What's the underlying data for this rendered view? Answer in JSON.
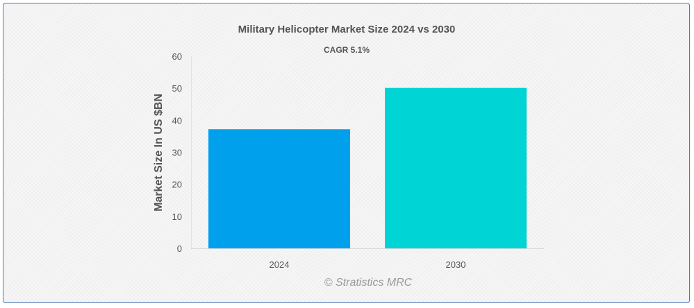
{
  "chart_data": {
    "type": "bar",
    "title": "Military Helicopter Market Size 2024 vs 2030",
    "subtitle": "CAGR 5.1%",
    "xlabel": "",
    "ylabel": "Market Size In US $BN",
    "categories": [
      "2024",
      "2030"
    ],
    "values": [
      37.2,
      50.1
    ],
    "colors": [
      "#00a0ec",
      "#00d4d4"
    ],
    "ylim": [
      0,
      60
    ],
    "yticks": [
      0,
      10,
      20,
      30,
      40,
      50,
      60
    ],
    "grid": false,
    "legend": "none"
  },
  "watermark": "© Stratistics MRC"
}
